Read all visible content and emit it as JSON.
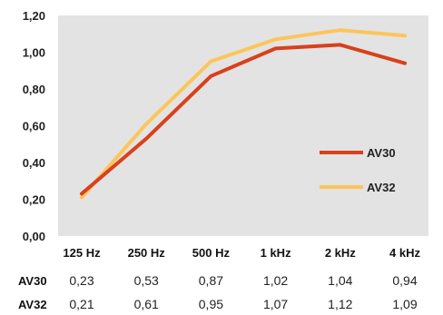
{
  "chart_data": {
    "type": "line",
    "title": "",
    "xlabel": "",
    "ylabel": "",
    "categories": [
      "125 Hz",
      "250 Hz",
      "500 Hz",
      "1 kHz",
      "2 kHz",
      "4 kHz"
    ],
    "ylim": [
      0,
      1.2
    ],
    "yticks": [
      "0,00",
      "0,20",
      "0,40",
      "0,60",
      "0,80",
      "1,00",
      "1,20"
    ],
    "grid": false,
    "legend_position": "right",
    "series": [
      {
        "name": "AV30",
        "color": "#d9401c",
        "values": [
          0.23,
          0.53,
          0.87,
          1.02,
          1.04,
          0.94
        ],
        "labels": [
          "0,23",
          "0,53",
          "0,87",
          "1,02",
          "1,04",
          "0,94"
        ]
      },
      {
        "name": "AV32",
        "color": "#fcc55a",
        "values": [
          0.21,
          0.61,
          0.95,
          1.07,
          1.12,
          1.09
        ],
        "labels": [
          "0,21",
          "0,61",
          "0,95",
          "1,07",
          "1,12",
          "1,09"
        ]
      }
    ],
    "plot_background": "#e3e3e3"
  }
}
